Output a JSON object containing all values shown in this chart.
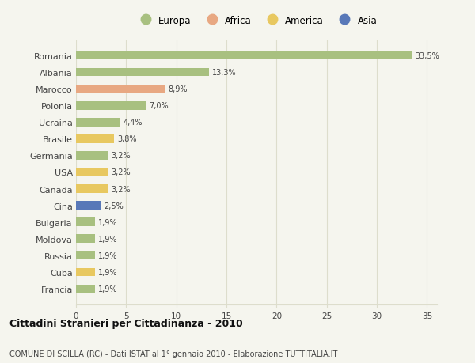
{
  "countries": [
    "Romania",
    "Albania",
    "Marocco",
    "Polonia",
    "Ucraina",
    "Brasile",
    "Germania",
    "USA",
    "Canada",
    "Cina",
    "Bulgaria",
    "Moldova",
    "Russia",
    "Cuba",
    "Francia"
  ],
  "values": [
    33.5,
    13.3,
    8.9,
    7.0,
    4.4,
    3.8,
    3.2,
    3.2,
    3.2,
    2.5,
    1.9,
    1.9,
    1.9,
    1.9,
    1.9
  ],
  "labels": [
    "33,5%",
    "13,3%",
    "8,9%",
    "7,0%",
    "4,4%",
    "3,8%",
    "3,2%",
    "3,2%",
    "3,2%",
    "2,5%",
    "1,9%",
    "1,9%",
    "1,9%",
    "1,9%",
    "1,9%"
  ],
  "colors": [
    "#a8c080",
    "#a8c080",
    "#e8a882",
    "#a8c080",
    "#a8c080",
    "#e8c860",
    "#a8c080",
    "#e8c860",
    "#e8c860",
    "#5878b8",
    "#a8c080",
    "#a8c080",
    "#a8c080",
    "#e8c860",
    "#a8c080"
  ],
  "continents": [
    "Europa",
    "Africa",
    "America",
    "Asia"
  ],
  "legend_colors": [
    "#a8c080",
    "#e8a882",
    "#e8c860",
    "#5878b8"
  ],
  "title": "Cittadini Stranieri per Cittadinanza - 2010",
  "subtitle": "COMUNE DI SCILLA (RC) - Dati ISTAT al 1° gennaio 2010 - Elaborazione TUTTITALIA.IT",
  "xlim": [
    0,
    36
  ],
  "xticks": [
    0,
    5,
    10,
    15,
    20,
    25,
    30,
    35
  ],
  "bg_color": "#f5f5ee",
  "grid_color": "#ddddcc",
  "bar_height": 0.5
}
